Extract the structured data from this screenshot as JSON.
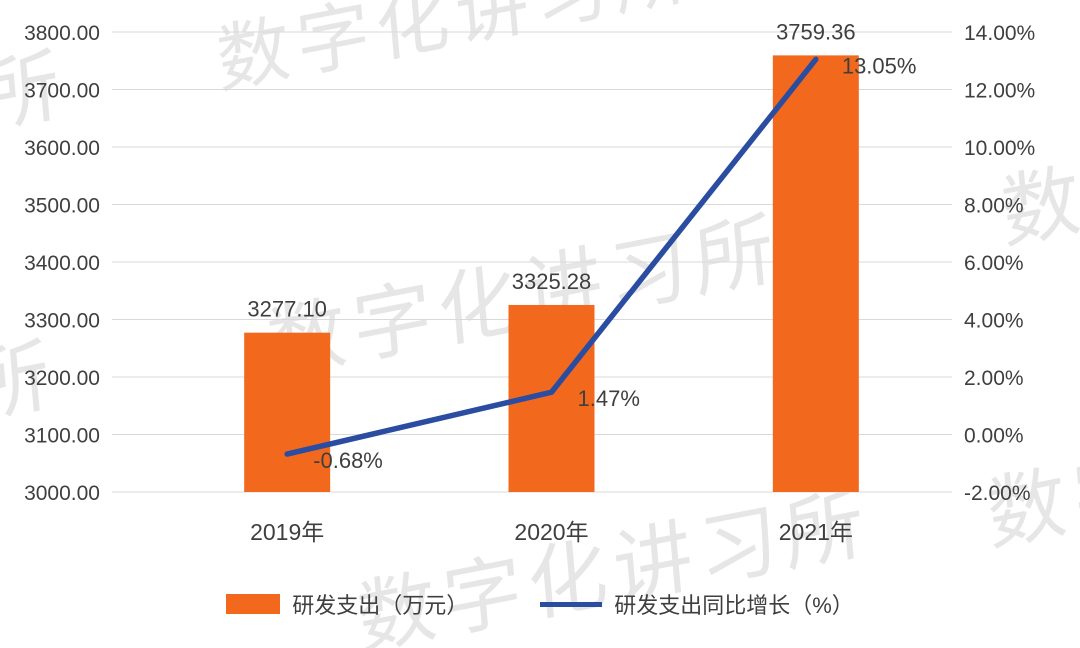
{
  "watermark": {
    "text": "数字化讲习所",
    "color": "#dedede"
  },
  "chart_data": {
    "type": "combo",
    "categories": [
      "2019年",
      "2020年",
      "2021年"
    ],
    "series": [
      {
        "name": "研发支出（万元）",
        "chart": "bar",
        "axis": "left",
        "color": "#f2691d",
        "values": [
          3277.1,
          3325.28,
          3759.36
        ],
        "labels": [
          "3277.10",
          "3325.28",
          "3759.36"
        ]
      },
      {
        "name": "研发支出同比增长（%）",
        "chart": "line",
        "axis": "right",
        "color": "#2b4da1",
        "values": [
          -0.68,
          1.47,
          13.05
        ],
        "labels": [
          "-0.68%",
          "1.47%",
          "13.05%"
        ]
      }
    ],
    "left_axis": {
      "min": 3000,
      "max": 3800,
      "step": 100,
      "tick_labels": [
        "3800.00",
        "3700.00",
        "3600.00",
        "3500.00",
        "3400.00",
        "3300.00",
        "3200.00",
        "3100.00",
        "3000.00"
      ]
    },
    "right_axis": {
      "min": -2,
      "max": 14,
      "step": 2,
      "tick_labels": [
        "14.00%",
        "12.00%",
        "10.00%",
        "8.00%",
        "6.00%",
        "4.00%",
        "2.00%",
        "0.00%",
        "-2.00%"
      ]
    },
    "grid": true,
    "grid_color": "#d9d9d9",
    "legend_position": "bottom",
    "background": "#ffffff",
    "text_color": "#3f3f3f"
  }
}
